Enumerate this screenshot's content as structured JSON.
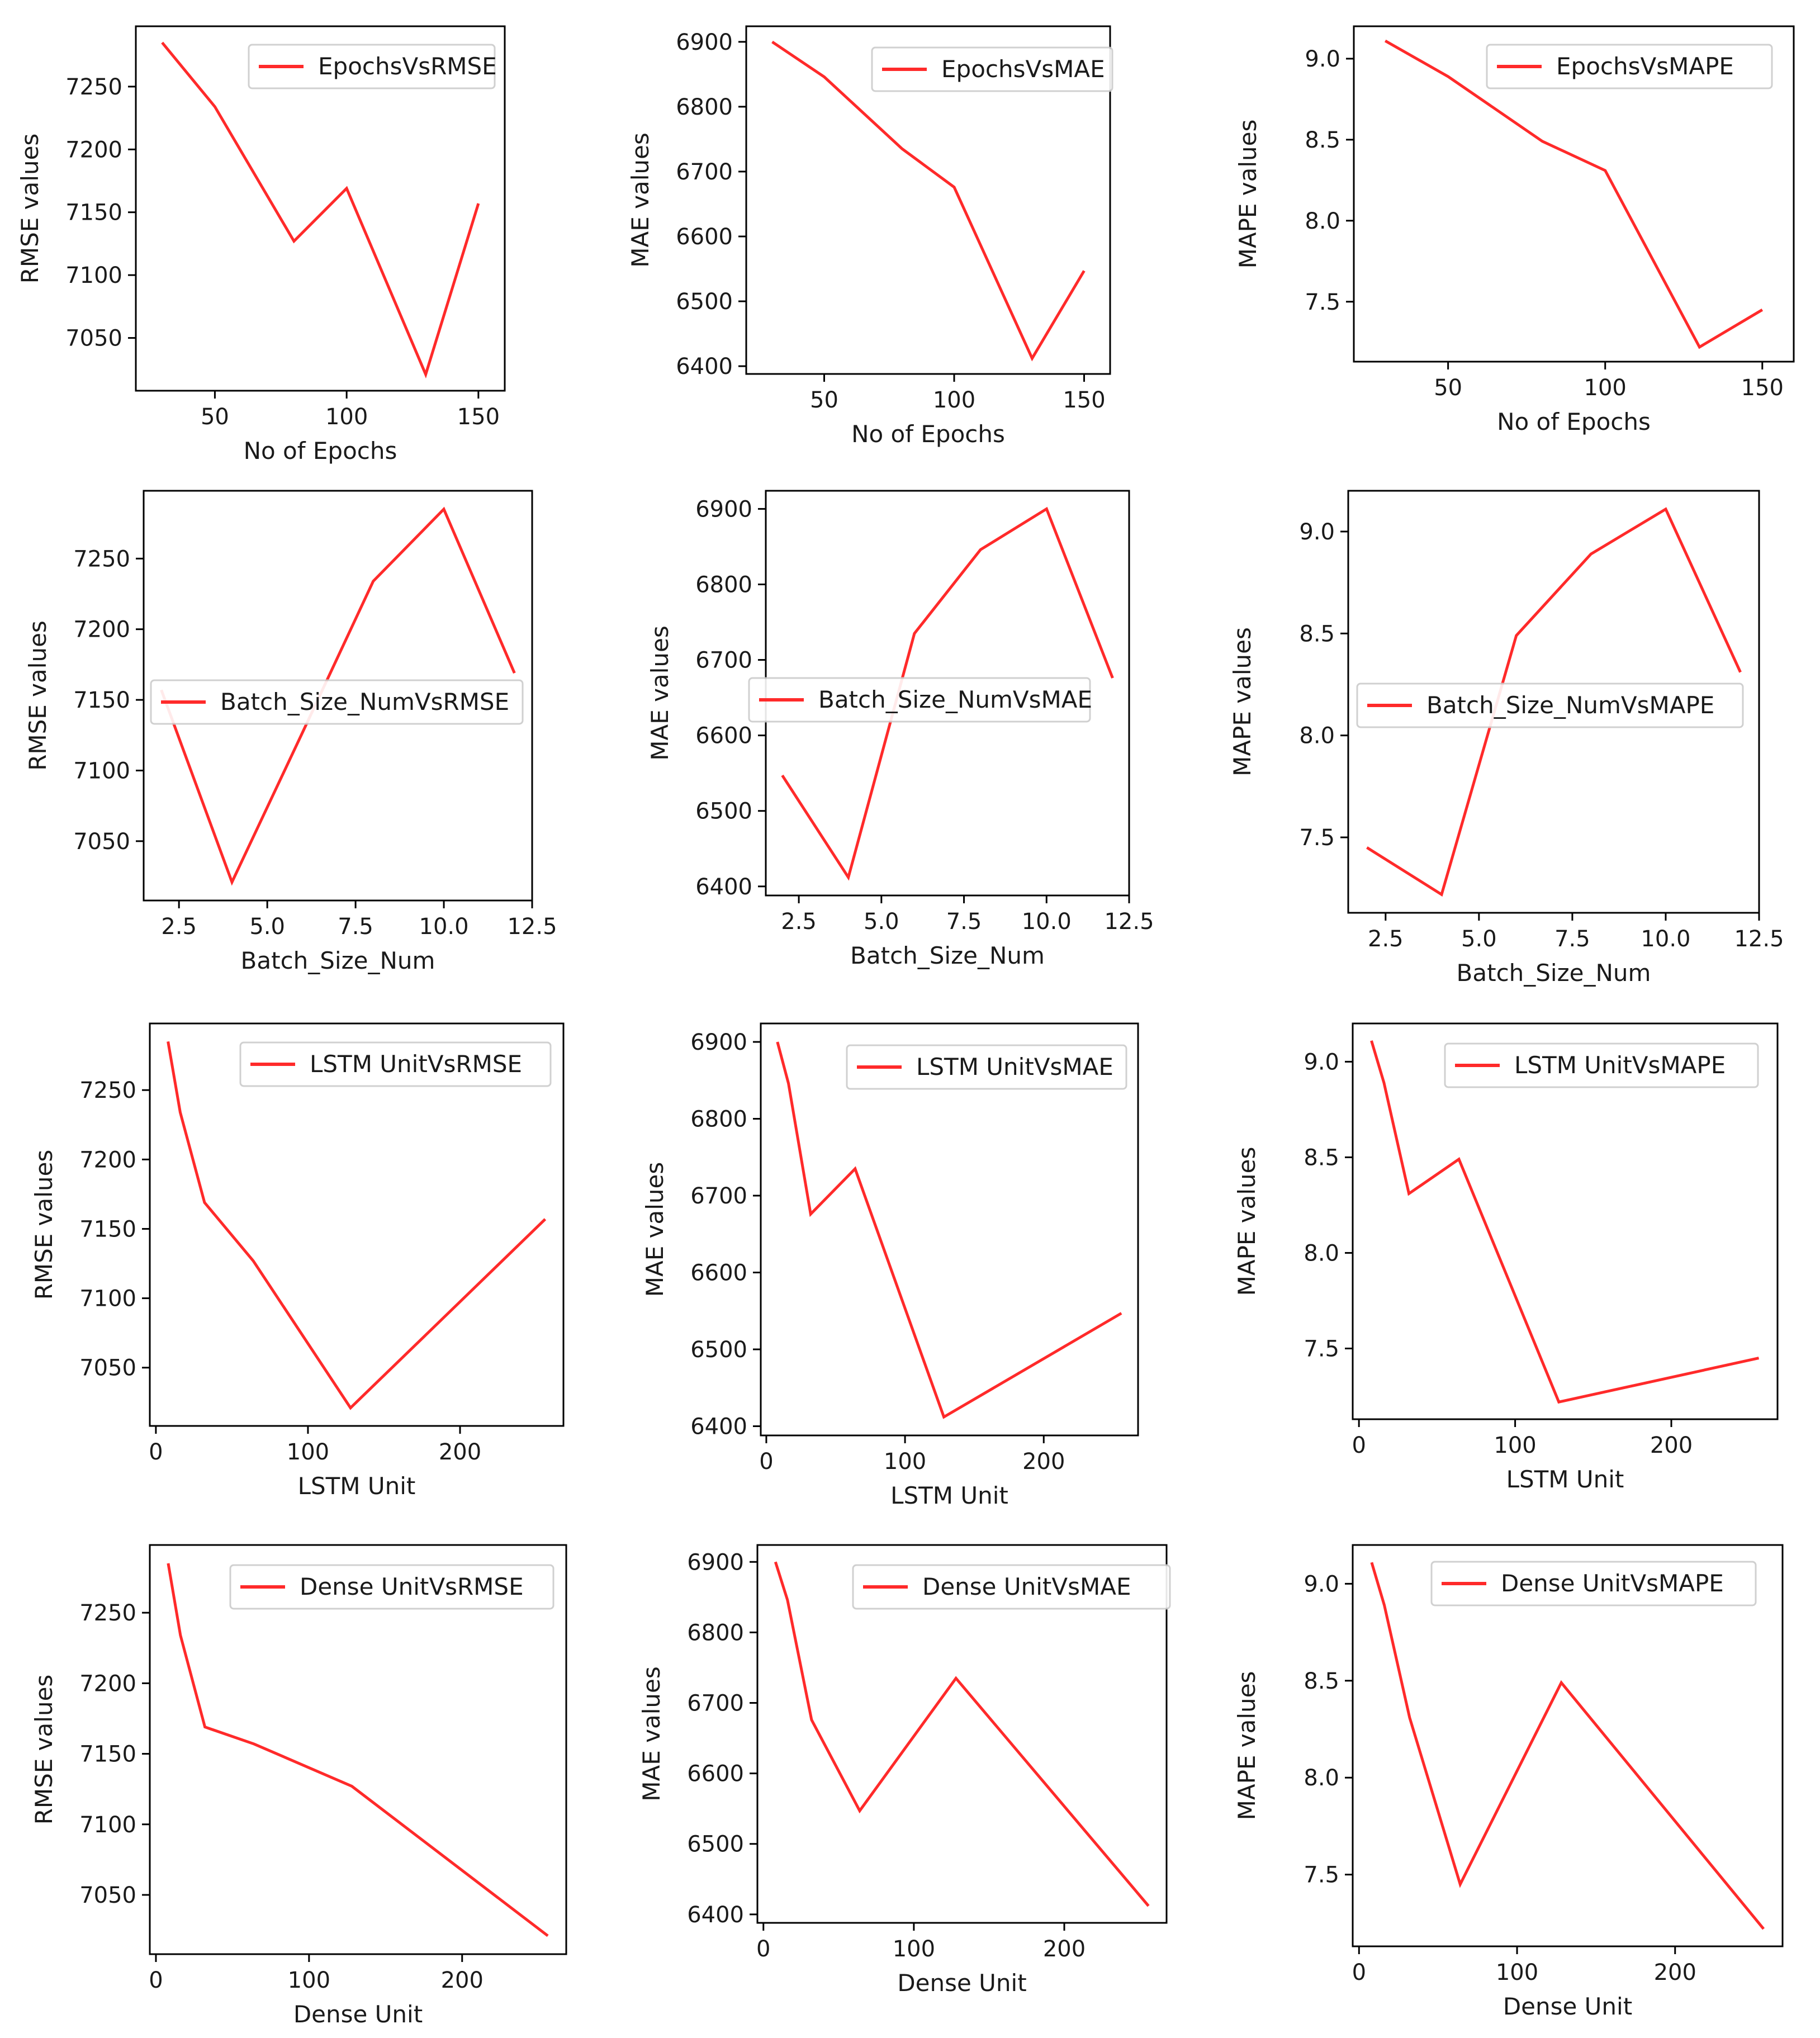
{
  "colors": {
    "series": "#ff2a2a",
    "axes": "#000000",
    "background": "#ffffff"
  },
  "chart_data": [
    {
      "id": "p00",
      "type": "line",
      "legend": "EpochsVsRMSE",
      "legend_loc": "upper right",
      "xlabel": "No of Epochs",
      "ylabel": "RMSE values",
      "x": [
        30,
        50,
        80,
        100,
        130,
        150
      ],
      "y": [
        7285,
        7234,
        7127,
        7169,
        7021,
        7157
      ],
      "xlim": [
        20,
        160
      ],
      "ylim": [
        7008,
        7298
      ],
      "xticks": [
        50,
        100,
        150
      ],
      "yticks": [
        7050,
        7100,
        7150,
        7200,
        7250
      ],
      "xtick_labels": [
        "50",
        "100",
        "150"
      ],
      "ytick_labels": [
        "7050",
        "7100",
        "7150",
        "7200",
        "7250"
      ]
    },
    {
      "id": "p01",
      "type": "line",
      "legend": "EpochsVsMAE",
      "legend_loc": "upper right",
      "xlabel": "No of Epochs",
      "ylabel": "MAE values",
      "x": [
        30,
        50,
        80,
        100,
        130,
        150
      ],
      "y": [
        6900,
        6846,
        6735,
        6676,
        6412,
        6547
      ],
      "xlim": [
        20,
        160
      ],
      "ylim": [
        6388,
        6924
      ],
      "xticks": [
        50,
        100,
        150
      ],
      "yticks": [
        6400,
        6500,
        6600,
        6700,
        6800,
        6900
      ],
      "xtick_labels": [
        "50",
        "100",
        "150"
      ],
      "ytick_labels": [
        "6400",
        "6500",
        "6600",
        "6700",
        "6800",
        "6900"
      ]
    },
    {
      "id": "p02",
      "type": "line",
      "legend": "EpochsVsMAPE",
      "legend_loc": "upper right",
      "xlabel": "No of Epochs",
      "ylabel": "MAPE values",
      "x": [
        30,
        50,
        80,
        100,
        130,
        150
      ],
      "y": [
        9.11,
        8.89,
        8.49,
        8.31,
        7.22,
        7.45
      ],
      "xlim": [
        20,
        160
      ],
      "ylim": [
        7.13,
        9.2
      ],
      "xticks": [
        50,
        100,
        150
      ],
      "yticks": [
        7.5,
        8.0,
        8.5,
        9.0
      ],
      "xtick_labels": [
        "50",
        "100",
        "150"
      ],
      "ytick_labels": [
        "7.5",
        "8.0",
        "8.5",
        "9.0"
      ]
    },
    {
      "id": "p10",
      "type": "line",
      "legend": "Batch_Size_NumVsRMSE",
      "legend_loc": "center",
      "xlabel": "Batch_Size_Num",
      "ylabel": "RMSE values",
      "x": [
        2,
        4,
        6,
        8,
        10,
        12
      ],
      "y": [
        7157,
        7021,
        7127,
        7234,
        7285,
        7169
      ],
      "xlim": [
        1.5,
        12.5
      ],
      "ylim": [
        7008,
        7298
      ],
      "xticks": [
        2.5,
        5.0,
        7.5,
        10.0,
        12.5
      ],
      "yticks": [
        7050,
        7100,
        7150,
        7200,
        7250
      ],
      "xtick_labels": [
        "2.5",
        "5.0",
        "7.5",
        "10.0",
        "12.5"
      ],
      "ytick_labels": [
        "7050",
        "7100",
        "7150",
        "7200",
        "7250"
      ]
    },
    {
      "id": "p11",
      "type": "line",
      "legend": "Batch_Size_NumVsMAE",
      "legend_loc": "center",
      "xlabel": "Batch_Size_Num",
      "ylabel": "MAE values",
      "x": [
        2,
        4,
        6,
        8,
        10,
        12
      ],
      "y": [
        6547,
        6412,
        6735,
        6846,
        6900,
        6676
      ],
      "xlim": [
        1.5,
        12.5
      ],
      "ylim": [
        6388,
        6924
      ],
      "xticks": [
        2.5,
        5.0,
        7.5,
        10.0,
        12.5
      ],
      "yticks": [
        6400,
        6500,
        6600,
        6700,
        6800,
        6900
      ],
      "xtick_labels": [
        "2.5",
        "5.0",
        "7.5",
        "10.0",
        "12.5"
      ],
      "ytick_labels": [
        "6400",
        "6500",
        "6600",
        "6700",
        "6800",
        "6900"
      ]
    },
    {
      "id": "p12",
      "type": "line",
      "legend": "Batch_Size_NumVsMAPE",
      "legend_loc": "center",
      "xlabel": "Batch_Size_Num",
      "ylabel": "MAPE values",
      "x": [
        2,
        4,
        6,
        8,
        10,
        12
      ],
      "y": [
        7.45,
        7.22,
        8.49,
        8.89,
        9.11,
        8.31
      ],
      "xlim": [
        1.5,
        12.5
      ],
      "ylim": [
        7.13,
        9.2
      ],
      "xticks": [
        2.5,
        5.0,
        7.5,
        10.0,
        12.5
      ],
      "yticks": [
        7.5,
        8.0,
        8.5,
        9.0
      ],
      "xtick_labels": [
        "2.5",
        "5.0",
        "7.5",
        "10.0",
        "12.5"
      ],
      "ytick_labels": [
        "7.5",
        "8.0",
        "8.5",
        "9.0"
      ]
    },
    {
      "id": "p20",
      "type": "line",
      "legend": "LSTM UnitVsRMSE",
      "legend_loc": "upper right",
      "xlabel": "LSTM Unit",
      "ylabel": "RMSE values",
      "x": [
        8,
        16,
        32,
        64,
        128,
        256
      ],
      "y": [
        7285,
        7234,
        7169,
        7127,
        7021,
        7157
      ],
      "xlim": [
        -4,
        268
      ],
      "ylim": [
        7008,
        7298
      ],
      "xticks": [
        0,
        100,
        200
      ],
      "yticks": [
        7050,
        7100,
        7150,
        7200,
        7250
      ],
      "xtick_labels": [
        "0",
        "100",
        "200"
      ],
      "ytick_labels": [
        "7050",
        "7100",
        "7150",
        "7200",
        "7250"
      ]
    },
    {
      "id": "p21",
      "type": "line",
      "legend": "LSTM UnitVsMAE",
      "legend_loc": "upper right",
      "xlabel": "LSTM Unit",
      "ylabel": "MAE values",
      "x": [
        8,
        16,
        32,
        64,
        128,
        256
      ],
      "y": [
        6900,
        6846,
        6676,
        6735,
        6412,
        6547
      ],
      "xlim": [
        -4,
        268
      ],
      "ylim": [
        6388,
        6924
      ],
      "xticks": [
        0,
        100,
        200
      ],
      "yticks": [
        6400,
        6500,
        6600,
        6700,
        6800,
        6900
      ],
      "xtick_labels": [
        "0",
        "100",
        "200"
      ],
      "ytick_labels": [
        "6400",
        "6500",
        "6600",
        "6700",
        "6800",
        "6900"
      ]
    },
    {
      "id": "p22",
      "type": "line",
      "legend": "LSTM UnitVsMAPE",
      "legend_loc": "upper right",
      "xlabel": "LSTM Unit",
      "ylabel": "MAPE values",
      "x": [
        8,
        16,
        32,
        64,
        128,
        256
      ],
      "y": [
        9.11,
        8.89,
        8.31,
        8.49,
        7.22,
        7.45
      ],
      "xlim": [
        -4,
        268
      ],
      "ylim": [
        7.13,
        9.2
      ],
      "xticks": [
        0,
        100,
        200
      ],
      "yticks": [
        7.5,
        8.0,
        8.5,
        9.0
      ],
      "xtick_labels": [
        "0",
        "100",
        "200"
      ],
      "ytick_labels": [
        "7.5",
        "8.0",
        "8.5",
        "9.0"
      ]
    },
    {
      "id": "p30",
      "type": "line",
      "legend": "Dense UnitVsRMSE",
      "legend_loc": "upper right",
      "xlabel": "Dense Unit",
      "ylabel": "RMSE values",
      "x": [
        8,
        16,
        32,
        64,
        128,
        256
      ],
      "y": [
        7285,
        7234,
        7169,
        7157,
        7127,
        7021
      ],
      "xlim": [
        -4,
        268
      ],
      "ylim": [
        7008,
        7298
      ],
      "xticks": [
        0,
        100,
        200
      ],
      "yticks": [
        7050,
        7100,
        7150,
        7200,
        7250
      ],
      "xtick_labels": [
        "0",
        "100",
        "200"
      ],
      "ytick_labels": [
        "7050",
        "7100",
        "7150",
        "7200",
        "7250"
      ]
    },
    {
      "id": "p31",
      "type": "line",
      "legend": "Dense UnitVsMAE",
      "legend_loc": "upper right",
      "xlabel": "Dense Unit",
      "ylabel": "MAE values",
      "x": [
        8,
        16,
        32,
        64,
        128,
        256
      ],
      "y": [
        6900,
        6846,
        6676,
        6547,
        6735,
        6412
      ],
      "xlim": [
        -4,
        268
      ],
      "ylim": [
        6388,
        6924
      ],
      "xticks": [
        0,
        100,
        200
      ],
      "yticks": [
        6400,
        6500,
        6600,
        6700,
        6800,
        6900
      ],
      "xtick_labels": [
        "0",
        "100",
        "200"
      ],
      "ytick_labels": [
        "6400",
        "6500",
        "6600",
        "6700",
        "6800",
        "6900"
      ]
    },
    {
      "id": "p32",
      "type": "line",
      "legend": "Dense UnitVsMAPE",
      "legend_loc": "upper right",
      "xlabel": "Dense Unit",
      "ylabel": "MAPE values",
      "x": [
        8,
        16,
        32,
        64,
        128,
        256
      ],
      "y": [
        9.11,
        8.89,
        8.31,
        7.45,
        8.49,
        7.22
      ],
      "xlim": [
        -4,
        268
      ],
      "ylim": [
        7.13,
        9.2
      ],
      "xticks": [
        0,
        100,
        200
      ],
      "yticks": [
        7.5,
        8.0,
        8.5,
        9.0
      ],
      "xtick_labels": [
        "0",
        "100",
        "200"
      ],
      "ytick_labels": [
        "7.5",
        "8.0",
        "8.5",
        "9.0"
      ]
    }
  ]
}
